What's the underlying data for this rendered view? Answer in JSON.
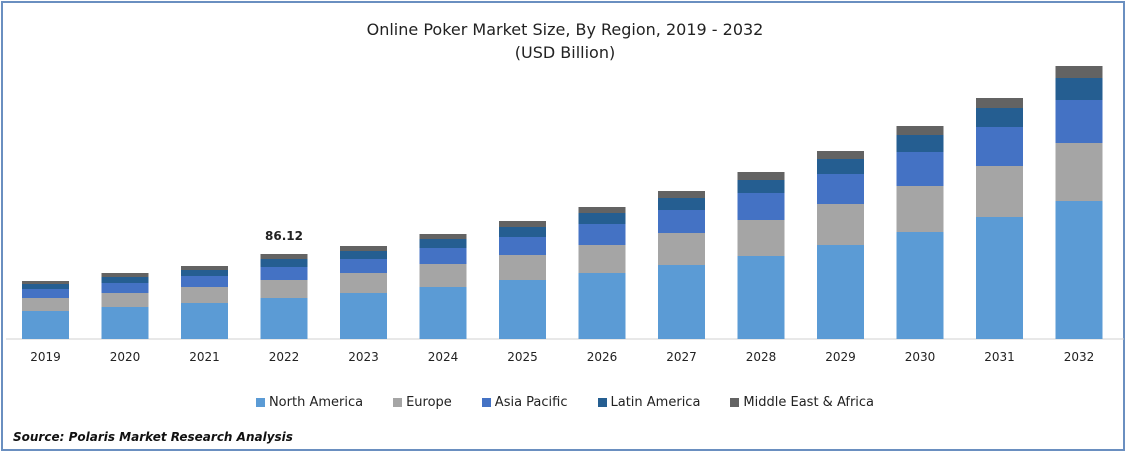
{
  "chart_data": {
    "type": "bar",
    "stacked": true,
    "title": "Online Poker Market Size, By Region, 2019 - 2032",
    "subtitle": "(USD Billion)",
    "categories": [
      "2019",
      "2020",
      "2021",
      "2022",
      "2023",
      "2024",
      "2025",
      "2026",
      "2027",
      "2028",
      "2029",
      "2030",
      "2031",
      "2032"
    ],
    "series": [
      {
        "name": "North America",
        "color": "#5b9bd5",
        "values": [
          28,
          32,
          36,
          41,
          46,
          52,
          59,
          66,
          74,
          83,
          94,
          107,
          122,
          138
        ]
      },
      {
        "name": "Europe",
        "color": "#a5a5a5",
        "values": [
          13,
          14,
          16,
          18,
          20,
          23,
          25,
          28,
          32,
          36,
          41,
          46,
          51,
          58
        ]
      },
      {
        "name": "Asia Pacific",
        "color": "#4472c4",
        "values": [
          9,
          10,
          11,
          13,
          14,
          16,
          18,
          21,
          23,
          27,
          30,
          34,
          39,
          43
        ]
      },
      {
        "name": "Latin America",
        "color": "#255e91",
        "values": [
          5,
          6,
          6,
          8,
          8,
          9,
          10,
          11,
          12,
          13,
          15,
          17,
          19,
          22
        ]
      },
      {
        "name": "Middle East & Africa",
        "color": "#636363",
        "values": [
          3,
          4,
          4,
          5,
          5,
          5,
          6,
          6,
          7,
          8,
          8,
          9,
          10,
          12
        ]
      }
    ],
    "data_labels": [
      {
        "category": "2022",
        "text": "86.12"
      }
    ],
    "legend_position": "bottom",
    "grid": false
  },
  "source": "Source: Polaris  Market Research Analysis"
}
